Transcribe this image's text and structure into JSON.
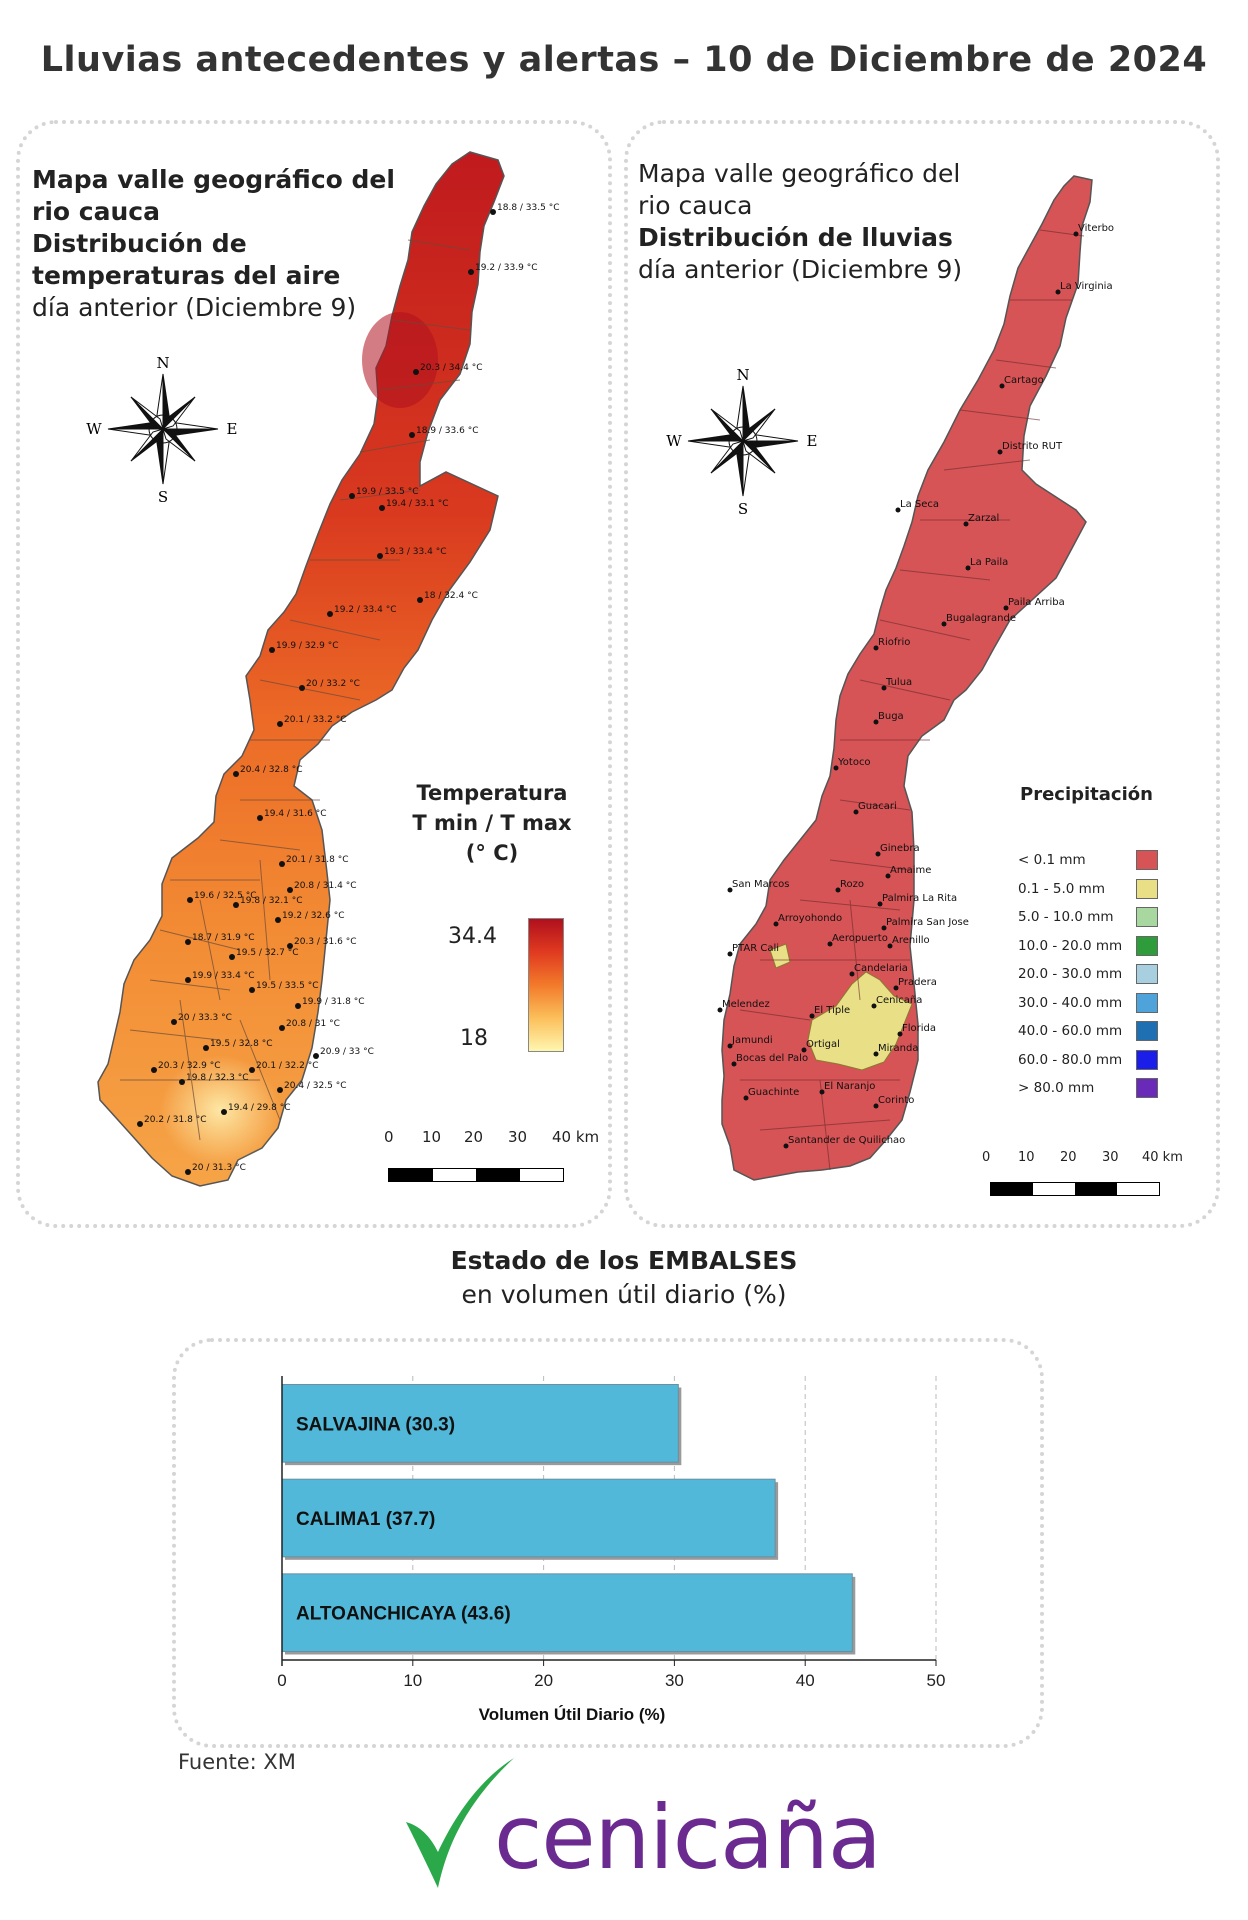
{
  "main_title": "Lluvias antecedentes y alertas – 10 de Diciembre de 2024",
  "temp_panel": {
    "title_bold_1": "Mapa valle geográfico del",
    "title_bold_2": "rio cauca",
    "title_bold_3": "Distribución de",
    "title_bold_4": "temperaturas del aire",
    "title_normal": "día anterior (Diciembre 9)",
    "compass": {
      "n": "N",
      "s": "S",
      "e": "E",
      "w": "W"
    },
    "legend": {
      "line1": "Temperatura",
      "line2": "T min / T max",
      "line3": "(° C)",
      "max": "34.4",
      "min": "18"
    },
    "scale": {
      "labels": [
        "0",
        "10",
        "20",
        "30",
        "40 km"
      ]
    },
    "stations": [
      "18.8 / 33.5 °C",
      "19.2 / 33.9 °C",
      "20.3 / 34.4 °C",
      "18.9 / 33.6 °C",
      "19.9 / 33.5 °C",
      "19.4 / 33.1 °C",
      "19.3 / 33.4 °C",
      "18 / 32.4 °C",
      "19.2 / 33.4 °C",
      "19.9 / 32.9 °C",
      "20 / 33.2 °C",
      "20.1 / 33.2 °C",
      "20.4 / 32.8 °C",
      "19.4 / 31.6 °C",
      "20.1 / 31.8 °C",
      "20.8 / 31.4 °C",
      "19.6 / 32.5 °C",
      "19.8 / 32.1 °C",
      "19.2 / 32.6 °C",
      "18.7 / 31.9 °C",
      "20.3 / 31.6 °C",
      "19.5 / 32.7 °C",
      "19.9 / 33.4 °C",
      "19.5 / 33.5 °C",
      "19.9 / 31.8 °C",
      "20 / 33.3 °C",
      "20.8 / 31 °C",
      "19.5 / 32.8 °C",
      "20.9 / 33 °C",
      "20.1 / 32.2 °C",
      "20.3 / 32.9 °C",
      "19.8 / 32.3 °C",
      "20.4 / 32.5 °C",
      "19.4 / 29.8 °C",
      "20.2 / 31.8 °C",
      "20 / 31.3 °C"
    ]
  },
  "rain_panel": {
    "title_normal_1": "Mapa valle geográfico del",
    "title_normal_2": "rio cauca",
    "title_bold": "Distribución de lluvias",
    "title_normal_3": "día anterior (Diciembre 9)",
    "compass": {
      "n": "N",
      "s": "S",
      "e": "E",
      "w": "W"
    },
    "scale": {
      "labels": [
        "0",
        "10",
        "20",
        "30",
        "40 km"
      ]
    },
    "towns": [
      "Viterbo",
      "La Virginia",
      "Cartago",
      "Distrito RUT",
      "La Seca",
      "Zarzal",
      "La Paila",
      "Paila Arriba",
      "Bugalagrande",
      "Riofrio",
      "Tulua",
      "Buga",
      "Yotoco",
      "Guacari",
      "Ginebra",
      "Amaime",
      "Rozo",
      "San Marcos",
      "Palmira La Rita",
      "Palmira San Jose",
      "Arroyohondo",
      "Aeropuerto",
      "Arenillo",
      "PTAR Cali",
      "Candelaria",
      "Pradera",
      "Cenicaña",
      "Melendez",
      "El Tiple",
      "Florida",
      "Jamundi",
      "Bocas del Palo",
      "Ortigal",
      "Miranda",
      "El Naranjo",
      "Guachinte",
      "Corinto",
      "Santander de Quilichao"
    ],
    "legend": {
      "title": "Precipitación",
      "items": [
        {
          "label": "< 0.1 mm",
          "color": "#d65356"
        },
        {
          "label": "0.1 - 5.0 mm",
          "color": "#e8df86"
        },
        {
          "label": "5.0 - 10.0 mm",
          "color": "#a8d8a0"
        },
        {
          "label": "10.0 - 20.0 mm",
          "color": "#2e9c3a"
        },
        {
          "label": "20.0 - 30.0 mm",
          "color": "#a7cfe0"
        },
        {
          "label": "30.0 - 40.0 mm",
          "color": "#4fa3db"
        },
        {
          "label": "40.0 - 60.0 mm",
          "color": "#1f6fb3"
        },
        {
          "label": "60.0 - 80.0 mm",
          "color": "#1a1ee8"
        },
        {
          "label": "> 80.0 mm",
          "color": "#6a2ab8"
        }
      ]
    }
  },
  "dams_section": {
    "title_bold": "Estado de los EMBALSES",
    "title_normal": "en volumen útil diario (%)"
  },
  "chart_data": {
    "type": "bar",
    "orientation": "horizontal",
    "categories": [
      "SALVAJINA (30.3)",
      "CALIMA1 (37.7)",
      "ALTOANCHICAYA (43.6)"
    ],
    "values": [
      30.3,
      37.7,
      43.6
    ],
    "xlabel": "Volumen Útil Diario (%)",
    "xlim": [
      0,
      50
    ],
    "xticks": [
      "0",
      "10",
      "20",
      "30",
      "40",
      "50"
    ],
    "bar_color": "#52b8d9",
    "grid": "vertical dashed"
  },
  "source": "Fuente: XM",
  "logo_text": "cenicaña",
  "colors": {
    "logo_green": "#2aa84a",
    "logo_purple": "#6a2a8f"
  }
}
